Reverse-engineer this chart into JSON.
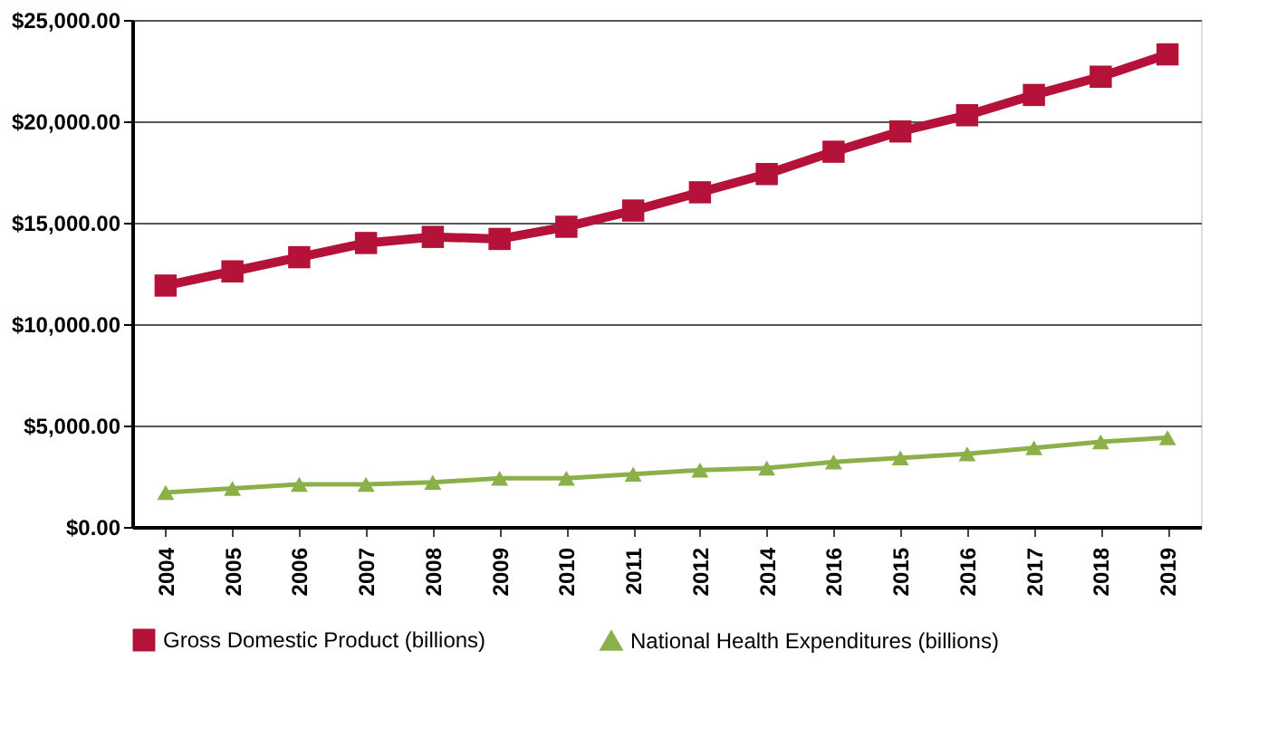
{
  "chart_data": {
    "type": "line",
    "categories": [
      "2004",
      "2005",
      "2006",
      "2007",
      "2008",
      "2009",
      "2010",
      "2011",
      "2012",
      "2014",
      "2016",
      "2015",
      "2016",
      "2017",
      "2018",
      "2019"
    ],
    "series": [
      {
        "name": "Gross Domestic Product (billions)",
        "color": "#b5123a",
        "marker": "square",
        "values": [
          11900,
          12600,
          13300,
          14000,
          14300,
          14200,
          14800,
          15600,
          16500,
          17400,
          18500,
          19500,
          20300,
          21300,
          22200,
          23300
        ]
      },
      {
        "name": "National Health Expenditures (billions)",
        "color": "#8bb04a",
        "marker": "triangle",
        "values": [
          1700,
          1900,
          2100,
          2100,
          2200,
          2400,
          2400,
          2600,
          2800,
          2900,
          3200,
          3400,
          3600,
          3900,
          4200,
          4400
        ]
      }
    ],
    "ylim": [
      0,
      25000
    ],
    "yticks": [
      {
        "value": 0,
        "label": "$0.00"
      },
      {
        "value": 5000,
        "label": "$5,000.00"
      },
      {
        "value": 10000,
        "label": "$10,000.00"
      },
      {
        "value": 15000,
        "label": "$15,000.00"
      },
      {
        "value": 20000,
        "label": "$20,000.00"
      },
      {
        "value": 25000,
        "label": "$25,000.00"
      }
    ],
    "grid": "y",
    "legend": "bottom"
  }
}
